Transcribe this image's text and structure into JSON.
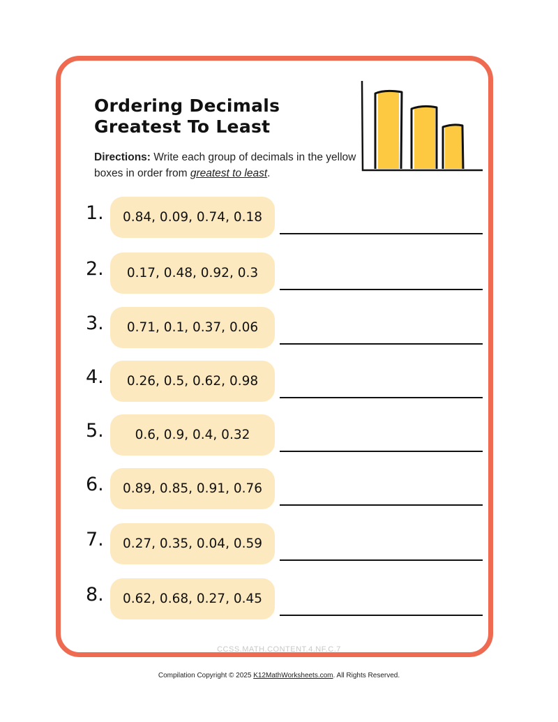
{
  "worksheet": {
    "title_line1": "Ordering Decimals",
    "title_line2": "Greatest To Least",
    "directions_label": "Directions:",
    "directions_text": " Write each group of decimals in the yellow boxes in order from ",
    "directions_emphasis": "greatest to least",
    "directions_end": "."
  },
  "problems": [
    {
      "number": "1.",
      "decimals": "0.84, 0.09, 0.74, 0.18"
    },
    {
      "number": "2.",
      "decimals": "0.17, 0.48, 0.92, 0.3"
    },
    {
      "number": "3.",
      "decimals": "0.71, 0.1, 0.37, 0.06"
    },
    {
      "number": "4.",
      "decimals": "0.26, 0.5, 0.62, 0.98"
    },
    {
      "number": "5.",
      "decimals": "0.6, 0.9, 0.4, 0.32"
    },
    {
      "number": "6.",
      "decimals": "0.89, 0.85, 0.91, 0.76"
    },
    {
      "number": "7.",
      "decimals": "0.27, 0.35, 0.04, 0.59"
    },
    {
      "number": "8.",
      "decimals": "0.62, 0.68, 0.27, 0.45"
    }
  ],
  "footer": {
    "standard": "CCSS.MATH.CONTENT.4.NF.C.7",
    "copyright_before": "Compilation Copyright © 2025 ",
    "copyright_link": "K12MathWorksheets.com",
    "copyright_after": ". All Rights Reserved."
  },
  "colors": {
    "frame": "#ee6a50",
    "pill": "#fde9bf",
    "bar_fill": "#fcc940"
  },
  "icons": {
    "header_graphic": "bar-chart-illustration-icon"
  }
}
